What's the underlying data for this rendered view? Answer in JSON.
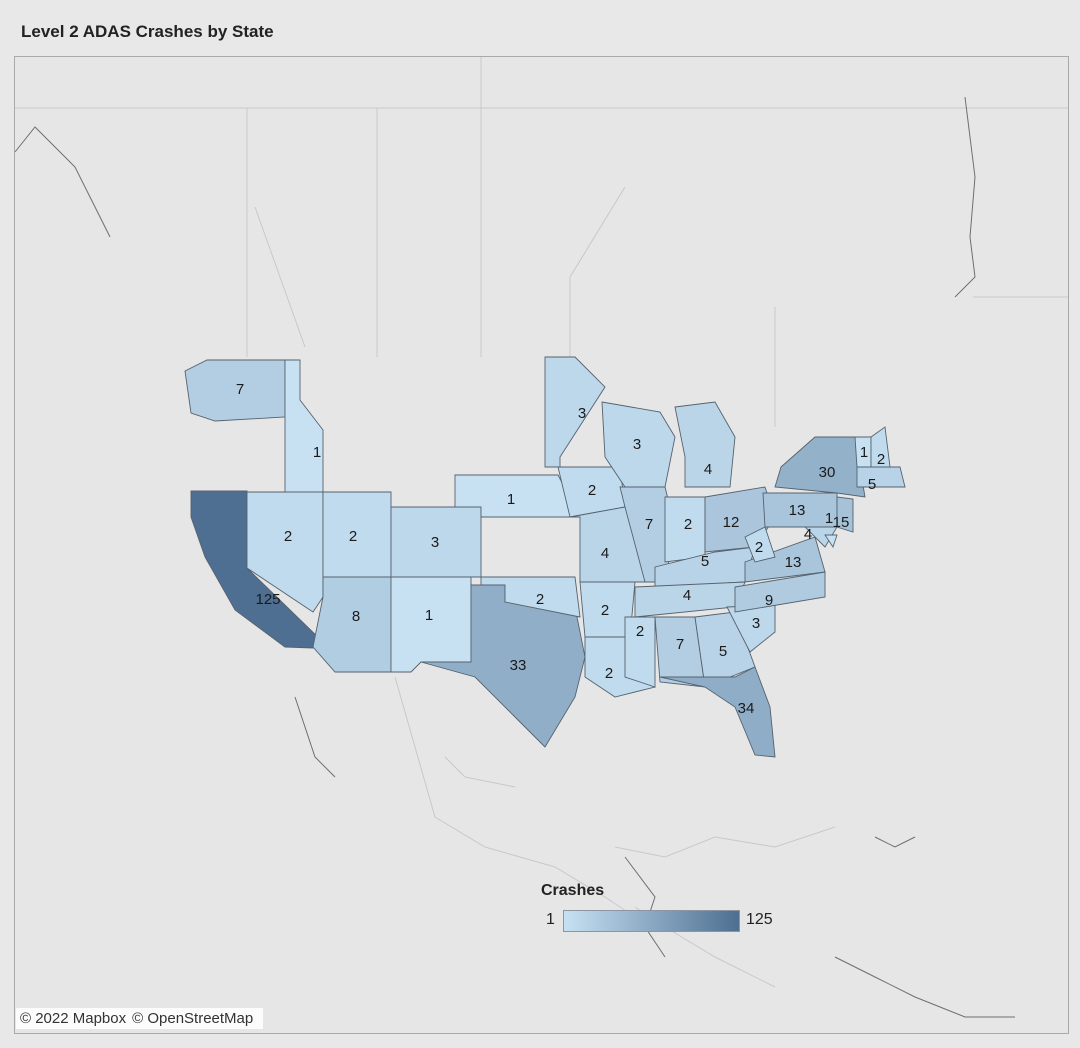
{
  "title": "Level 2 ADAS Crashes by State",
  "legend": {
    "title": "Crashes",
    "min": "1",
    "max": "125",
    "color_low": "#c7e1f3",
    "color_high": "#4e6f91"
  },
  "attribution": {
    "mapbox": "© 2022 Mapbox",
    "osm": "© OpenStreetMap"
  },
  "colors": {
    "low": "#c7e1f3",
    "mid": "#9ec3e0",
    "high": "#4e6f91",
    "empty": "#e6e6e6"
  },
  "map_data": {
    "measure": "Crashes",
    "regions": [
      {
        "id": "WA",
        "value": 7,
        "label": "7"
      },
      {
        "id": "ID",
        "value": 1,
        "label": "1"
      },
      {
        "id": "CA",
        "value": 125,
        "label": "125"
      },
      {
        "id": "NV",
        "value": 2,
        "label": "2"
      },
      {
        "id": "UT",
        "value": 2,
        "label": "2"
      },
      {
        "id": "AZ",
        "value": 8,
        "label": "8"
      },
      {
        "id": "CO",
        "value": 3,
        "label": "3"
      },
      {
        "id": "NM",
        "value": 1,
        "label": "1"
      },
      {
        "id": "NE",
        "value": 1,
        "label": "1"
      },
      {
        "id": "TX",
        "value": 33,
        "label": "33"
      },
      {
        "id": "OK",
        "value": 2,
        "label": "2"
      },
      {
        "id": "MN",
        "value": 3,
        "label": "3"
      },
      {
        "id": "IA",
        "value": 2,
        "label": "2"
      },
      {
        "id": "MO",
        "value": 4,
        "label": "4"
      },
      {
        "id": "AR",
        "value": 2,
        "label": "2"
      },
      {
        "id": "LA",
        "value": 2,
        "label": "2"
      },
      {
        "id": "WI",
        "value": 3,
        "label": "3"
      },
      {
        "id": "IL",
        "value": 7,
        "label": "7"
      },
      {
        "id": "MI",
        "value": 4,
        "label": "4"
      },
      {
        "id": "IN",
        "value": 2,
        "label": "2"
      },
      {
        "id": "OH",
        "value": 12,
        "label": "12"
      },
      {
        "id": "KY",
        "value": 5,
        "label": "5"
      },
      {
        "id": "TN",
        "value": 4,
        "label": "4"
      },
      {
        "id": "MS",
        "value": 2,
        "label": "2"
      },
      {
        "id": "AL",
        "value": 7,
        "label": "7"
      },
      {
        "id": "GA",
        "value": 5,
        "label": "5"
      },
      {
        "id": "FL",
        "value": 34,
        "label": "34"
      },
      {
        "id": "SC",
        "value": 3,
        "label": "3"
      },
      {
        "id": "NC",
        "value": 9,
        "label": "9"
      },
      {
        "id": "VA",
        "value": 13,
        "label": "13"
      },
      {
        "id": "WV",
        "value": 2,
        "label": "2"
      },
      {
        "id": "PA",
        "value": 13,
        "label": "13"
      },
      {
        "id": "NY",
        "value": 30,
        "label": "30"
      },
      {
        "id": "NJ",
        "value": 15,
        "label": "15"
      },
      {
        "id": "MD",
        "value": 4,
        "label": "4"
      },
      {
        "id": "DE",
        "value": 1,
        "label": "1"
      },
      {
        "id": "VT",
        "value": 1,
        "label": "1"
      },
      {
        "id": "NH",
        "value": 2,
        "label": "2"
      },
      {
        "id": "MA",
        "value": 5,
        "label": "5"
      }
    ]
  }
}
